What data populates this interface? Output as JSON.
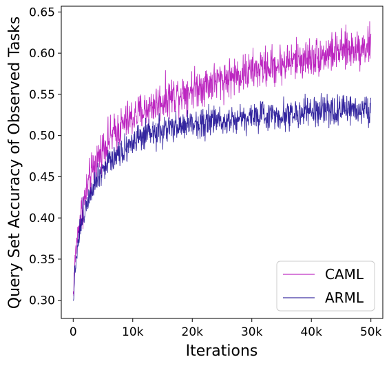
{
  "chart_data": {
    "type": "line",
    "title": "",
    "xlabel": "Iterations",
    "ylabel": "Query Set Accuracy of Observed Tasks",
    "xlim": [
      -2000,
      52000
    ],
    "ylim": [
      0.278,
      0.657
    ],
    "x_ticks": [
      0,
      10000,
      20000,
      30000,
      40000,
      50000
    ],
    "x_tick_labels": [
      "0",
      "10k",
      "20k",
      "30k",
      "40k",
      "50k"
    ],
    "y_ticks": [
      0.3,
      0.35,
      0.4,
      0.45,
      0.5,
      0.55,
      0.6,
      0.65
    ],
    "y_tick_labels": [
      "0.30",
      "0.35",
      "0.40",
      "0.45",
      "0.50",
      "0.55",
      "0.60",
      "0.65"
    ],
    "grid": false,
    "legend_position": "lower-right",
    "series": [
      {
        "name": "CAML",
        "color": "#b000b5",
        "x": [
          0,
          250,
          500,
          750,
          1000,
          1500,
          2000,
          2500,
          3000,
          3500,
          4000,
          5000,
          6000,
          7000,
          8000,
          9000,
          10000,
          12000,
          14000,
          16000,
          18000,
          20000,
          22000,
          24000,
          26000,
          28000,
          30000,
          32000,
          34000,
          36000,
          38000,
          40000,
          42000,
          44000,
          46000,
          48000,
          50000
        ],
        "y": [
          0.305,
          0.34,
          0.365,
          0.38,
          0.392,
          0.41,
          0.425,
          0.44,
          0.452,
          0.462,
          0.47,
          0.485,
          0.495,
          0.503,
          0.51,
          0.517,
          0.522,
          0.531,
          0.539,
          0.546,
          0.552,
          0.557,
          0.562,
          0.566,
          0.57,
          0.574,
          0.578,
          0.582,
          0.585,
          0.589,
          0.592,
          0.595,
          0.598,
          0.601,
          0.604,
          0.607,
          0.61
        ],
        "noise": 0.012
      },
      {
        "name": "ARML",
        "color": "#10008e",
        "x": [
          0,
          250,
          500,
          750,
          1000,
          1500,
          2000,
          2500,
          3000,
          3500,
          4000,
          5000,
          6000,
          7000,
          8000,
          9000,
          10000,
          12000,
          14000,
          16000,
          18000,
          20000,
          22000,
          24000,
          26000,
          28000,
          30000,
          32000,
          34000,
          36000,
          38000,
          40000,
          42000,
          44000,
          46000,
          48000,
          50000
        ],
        "y": [
          0.3,
          0.33,
          0.352,
          0.368,
          0.38,
          0.398,
          0.412,
          0.425,
          0.435,
          0.443,
          0.45,
          0.46,
          0.469,
          0.476,
          0.482,
          0.487,
          0.492,
          0.498,
          0.503,
          0.507,
          0.511,
          0.514,
          0.516,
          0.518,
          0.52,
          0.521,
          0.523,
          0.524,
          0.525,
          0.526,
          0.527,
          0.528,
          0.529,
          0.53,
          0.531,
          0.532,
          0.533
        ],
        "noise": 0.009
      }
    ]
  }
}
